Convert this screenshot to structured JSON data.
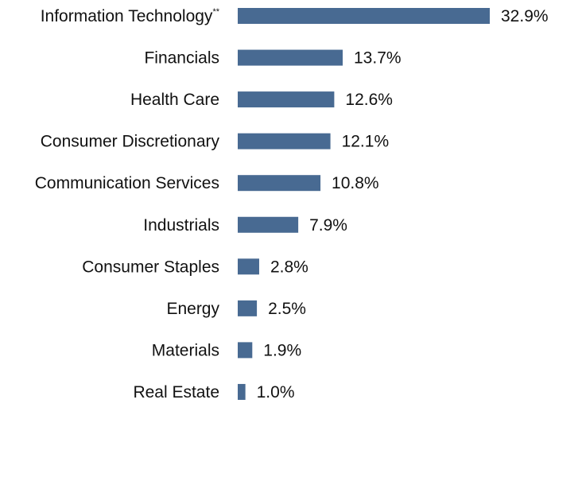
{
  "chart_data": {
    "type": "bar",
    "orientation": "horizontal",
    "categories": [
      "Information Technology",
      "Financials",
      "Health Care",
      "Consumer Discretionary",
      "Communication Services",
      "Industrials",
      "Consumer Staples",
      "Energy",
      "Materials",
      "Real Estate"
    ],
    "category_superscripts": [
      "**",
      "",
      "",
      "",
      "",
      "",
      "",
      "",
      "",
      ""
    ],
    "values": [
      32.9,
      13.7,
      12.6,
      12.1,
      10.8,
      7.9,
      2.8,
      2.5,
      1.9,
      1.0
    ],
    "value_labels": [
      "32.9%",
      "13.7%",
      "12.6%",
      "12.1%",
      "10.8%",
      "7.9%",
      "2.8%",
      "2.5%",
      "1.9%",
      "1.0%"
    ],
    "unit": "%",
    "title": "",
    "xlabel": "",
    "ylabel": "",
    "grid": false,
    "legend": "none",
    "bar_color": "#486a92",
    "label_color": "#111111"
  }
}
